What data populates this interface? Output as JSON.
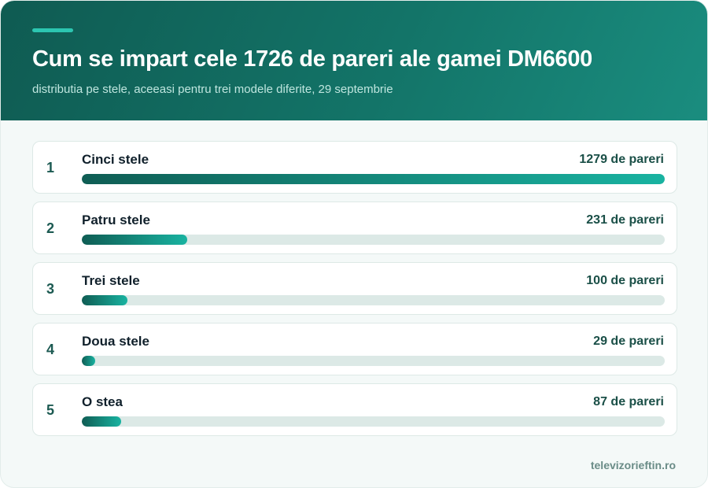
{
  "header": {
    "title": "Cum se impart cele 1726 de pareri ale gamei DM6600",
    "subtitle": "distributia pe stele, aceeasi pentru trei modele diferite, 29 septembrie"
  },
  "chart_data": {
    "type": "bar",
    "orientation": "horizontal",
    "title": "Cum se impart cele 1726 de pareri ale gamei DM6600",
    "subtitle": "distributia pe stele, aceeasi pentru trei modele diferite, 29 septembrie",
    "ranks": [
      "1",
      "2",
      "3",
      "4",
      "5"
    ],
    "categories": [
      "Cinci stele",
      "Patru stele",
      "Trei stele",
      "Doua stele",
      "O stea"
    ],
    "values": [
      1279,
      231,
      100,
      29,
      87
    ],
    "value_labels": [
      "1279 de pareri",
      "231 de pareri",
      "100 de pareri",
      "29 de pareri",
      "87 de pareri"
    ],
    "xlim": [
      0,
      1279
    ],
    "grid": false,
    "legend": "none",
    "colors": {
      "bar_start": "#0f5d54",
      "bar_end": "#19b3a1",
      "track": "#dce9e6"
    }
  },
  "footer": {
    "source": "televizorieftin.ro"
  }
}
